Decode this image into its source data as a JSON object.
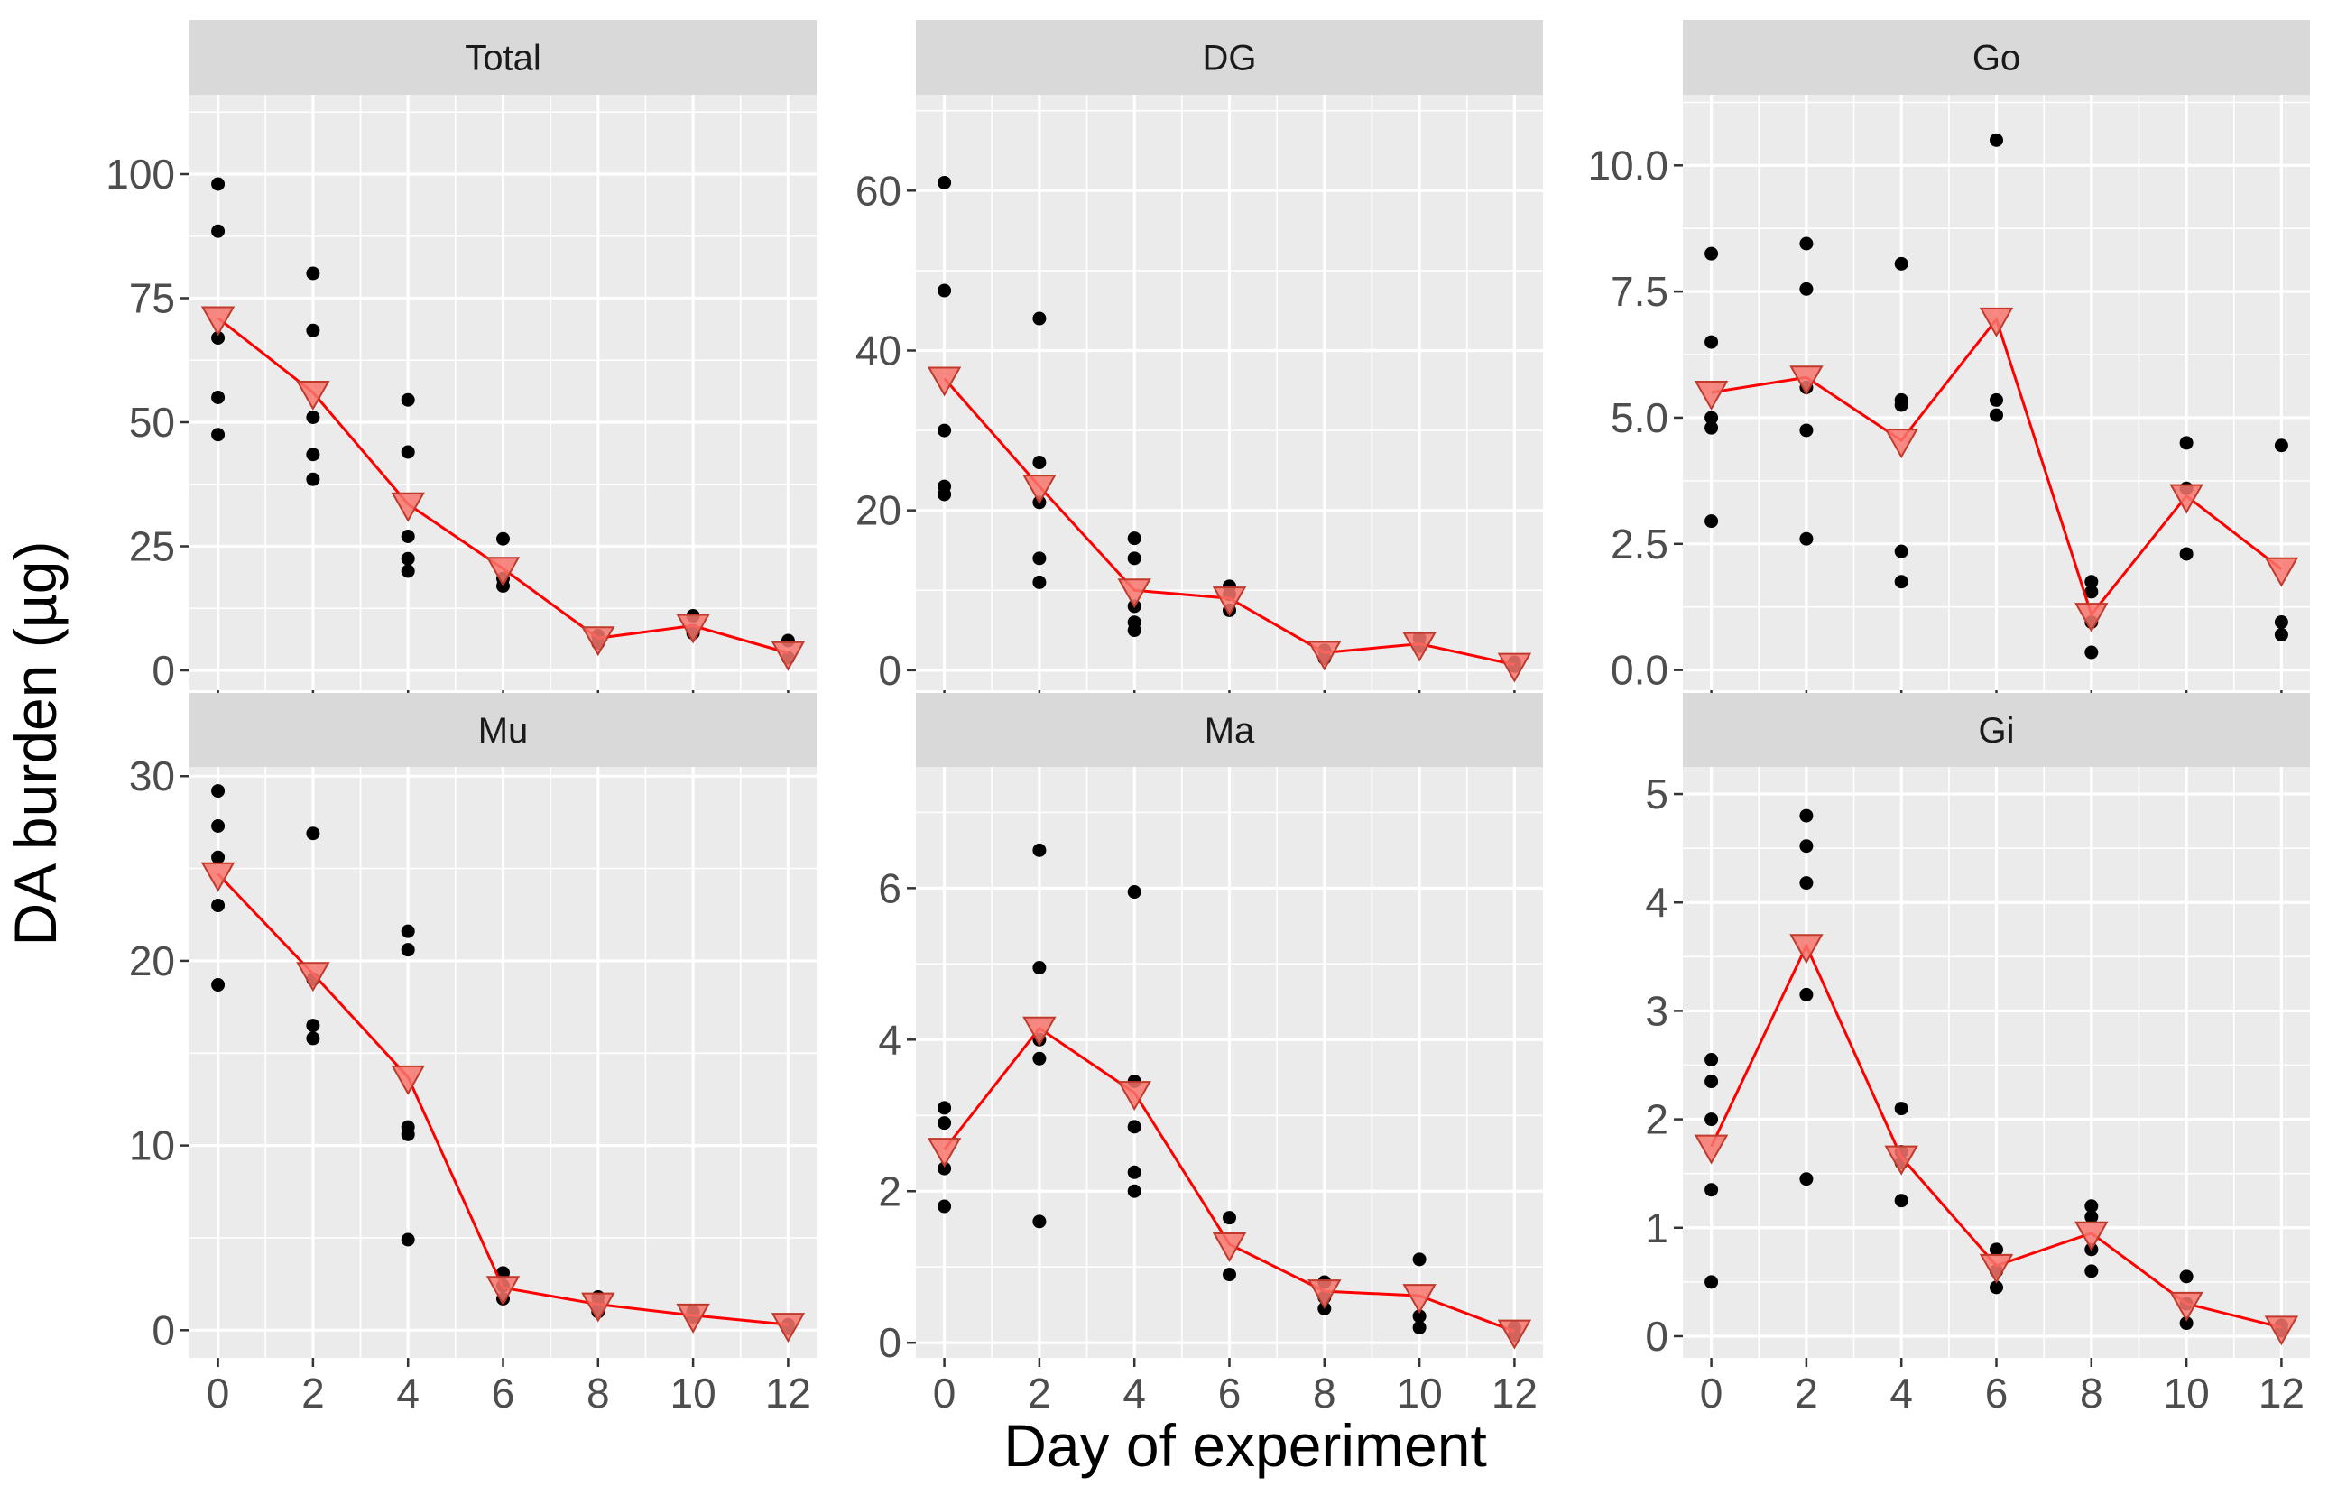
{
  "figure": {
    "xlabel": "Day of experiment",
    "ylabel": "DA burden (µg)",
    "colors": {
      "panel_bg": "#EBEBEB",
      "strip_bg": "#D9D9D9",
      "grid": "#FFFFFF",
      "points": "#000000",
      "mean_line": "#FF0000",
      "mean_marker": "#F8766D"
    }
  },
  "chart_data": [
    {
      "type": "scatter",
      "title": "Total",
      "xlim": [
        -0.6,
        12.6
      ],
      "ylim": [
        -4,
        116
      ],
      "xticks": [
        0,
        2,
        4,
        6,
        8,
        10,
        12
      ],
      "yticks": [
        0,
        25,
        50,
        75,
        100
      ],
      "ytick_labels": [
        "0",
        "25",
        "50",
        "75",
        "100"
      ],
      "points": [
        [
          0,
          98
        ],
        [
          0,
          88.5
        ],
        [
          0,
          67
        ],
        [
          0,
          55
        ],
        [
          0,
          47.5
        ],
        [
          2,
          80
        ],
        [
          2,
          68.5
        ],
        [
          2,
          51
        ],
        [
          2,
          43.5
        ],
        [
          2,
          38.5
        ],
        [
          4,
          54.5
        ],
        [
          4,
          44
        ],
        [
          4,
          27
        ],
        [
          4,
          22.5
        ],
        [
          4,
          20
        ],
        [
          6,
          26.5
        ],
        [
          6,
          18.5
        ],
        [
          6,
          17
        ],
        [
          8,
          7
        ],
        [
          8,
          5.5
        ],
        [
          10,
          11
        ],
        [
          10,
          8
        ],
        [
          10,
          7.5
        ],
        [
          12,
          6
        ],
        [
          12,
          2.5
        ]
      ],
      "mean": {
        "x": [
          0,
          2,
          4,
          6,
          8,
          10,
          12
        ],
        "y": [
          71,
          56,
          33.5,
          20.5,
          6.5,
          9,
          3.5
        ]
      }
    },
    {
      "type": "scatter",
      "title": "DG",
      "xlim": [
        -0.6,
        12.6
      ],
      "ylim": [
        -2.5,
        72
      ],
      "xticks": [
        0,
        2,
        4,
        6,
        8,
        10,
        12
      ],
      "yticks": [
        0,
        20,
        40,
        60
      ],
      "ytick_labels": [
        "0",
        "20",
        "40",
        "60"
      ],
      "points": [
        [
          0,
          61
        ],
        [
          0,
          47.5
        ],
        [
          0,
          30
        ],
        [
          0,
          23
        ],
        [
          0,
          22
        ],
        [
          2,
          44
        ],
        [
          2,
          26
        ],
        [
          2,
          21
        ],
        [
          2,
          14
        ],
        [
          2,
          11
        ],
        [
          4,
          16.5
        ],
        [
          4,
          14
        ],
        [
          4,
          8
        ],
        [
          4,
          6
        ],
        [
          4,
          5
        ],
        [
          6,
          10.5
        ],
        [
          6,
          9.5
        ],
        [
          6,
          7.5
        ],
        [
          8,
          2.5
        ],
        [
          8,
          1.5
        ],
        [
          10,
          4
        ],
        [
          10,
          3
        ],
        [
          12,
          1
        ],
        [
          12,
          0.5
        ]
      ],
      "mean": {
        "x": [
          0,
          2,
          4,
          6,
          8,
          10,
          12
        ],
        "y": [
          36.5,
          23,
          10,
          9,
          2.2,
          3.3,
          0.7
        ]
      }
    },
    {
      "type": "scatter",
      "title": "Go",
      "xlim": [
        -0.6,
        12.6
      ],
      "ylim": [
        -0.4,
        11.4
      ],
      "xticks": [
        0,
        2,
        4,
        6,
        8,
        10,
        12
      ],
      "yticks": [
        0,
        2.5,
        5,
        7.5,
        10
      ],
      "ytick_labels": [
        "0.0",
        "2.5",
        "5.0",
        "7.5",
        "10.0"
      ],
      "points": [
        [
          0,
          8.25
        ],
        [
          0,
          6.5
        ],
        [
          0,
          5
        ],
        [
          0,
          4.8
        ],
        [
          0,
          2.95
        ],
        [
          2,
          8.45
        ],
        [
          2,
          7.55
        ],
        [
          2,
          5.6
        ],
        [
          2,
          4.75
        ],
        [
          2,
          2.6
        ],
        [
          4,
          8.05
        ],
        [
          4,
          5.35
        ],
        [
          4,
          5.25
        ],
        [
          4,
          2.35
        ],
        [
          4,
          1.75
        ],
        [
          6,
          10.5
        ],
        [
          6,
          5.35
        ],
        [
          6,
          5.05
        ],
        [
          8,
          1.75
        ],
        [
          8,
          1.55
        ],
        [
          8,
          0.95
        ],
        [
          8,
          0.35
        ],
        [
          10,
          4.5
        ],
        [
          10,
          3.6
        ],
        [
          10,
          2.3
        ],
        [
          12,
          4.45
        ],
        [
          12,
          0.95
        ],
        [
          12,
          0.7
        ]
      ],
      "mean": {
        "x": [
          0,
          2,
          4,
          6,
          8,
          10,
          12
        ],
        "y": [
          5.5,
          5.8,
          4.55,
          6.95,
          1.1,
          3.45,
          2
        ]
      }
    },
    {
      "type": "scatter",
      "title": "Mu",
      "xlim": [
        -0.6,
        12.6
      ],
      "ylim": [
        -1.5,
        30.5
      ],
      "xticks": [
        0,
        2,
        4,
        6,
        8,
        10,
        12
      ],
      "yticks": [
        0,
        10,
        20,
        30
      ],
      "ytick_labels": [
        "0",
        "10",
        "20",
        "30"
      ],
      "points": [
        [
          0,
          29.2
        ],
        [
          0,
          27.3
        ],
        [
          0,
          25.6
        ],
        [
          0,
          23
        ],
        [
          0,
          18.7
        ],
        [
          2,
          26.9
        ],
        [
          2,
          19
        ],
        [
          2,
          16.5
        ],
        [
          2,
          15.8
        ],
        [
          4,
          21.6
        ],
        [
          4,
          20.6
        ],
        [
          4,
          11
        ],
        [
          4,
          10.6
        ],
        [
          4,
          4.9
        ],
        [
          6,
          3.1
        ],
        [
          6,
          2.4
        ],
        [
          6,
          1.7
        ],
        [
          8,
          1.8
        ],
        [
          8,
          1.4
        ],
        [
          8,
          1
        ],
        [
          10,
          1
        ],
        [
          10,
          0.7
        ],
        [
          12,
          0.3
        ],
        [
          12,
          0.1
        ]
      ],
      "mean": {
        "x": [
          0,
          2,
          4,
          6,
          8,
          10,
          12
        ],
        "y": [
          24.7,
          19.3,
          13.7,
          2.3,
          1.4,
          0.8,
          0.3
        ]
      }
    },
    {
      "type": "scatter",
      "title": "Ma",
      "xlim": [
        -0.6,
        12.6
      ],
      "ylim": [
        -0.2,
        7.6
      ],
      "xticks": [
        0,
        2,
        4,
        6,
        8,
        10,
        12
      ],
      "yticks": [
        0,
        2,
        4,
        6
      ],
      "ytick_labels": [
        "0",
        "2",
        "4",
        "6"
      ],
      "points": [
        [
          0,
          3.1
        ],
        [
          0,
          2.9
        ],
        [
          0,
          2.3
        ],
        [
          0,
          1.8
        ],
        [
          2,
          6.5
        ],
        [
          2,
          4.95
        ],
        [
          2,
          4
        ],
        [
          2,
          3.75
        ],
        [
          2,
          1.6
        ],
        [
          4,
          5.95
        ],
        [
          4,
          3.45
        ],
        [
          4,
          2.85
        ],
        [
          4,
          2.25
        ],
        [
          4,
          2
        ],
        [
          6,
          1.65
        ],
        [
          6,
          0.9
        ],
        [
          8,
          0.8
        ],
        [
          8,
          0.6
        ],
        [
          8,
          0.45
        ],
        [
          10,
          1.1
        ],
        [
          10,
          0.35
        ],
        [
          10,
          0.2
        ],
        [
          12,
          0.2
        ],
        [
          12,
          0.1
        ]
      ],
      "mean": {
        "x": [
          0,
          2,
          4,
          6,
          8,
          10,
          12
        ],
        "y": [
          2.55,
          4.15,
          3.3,
          1.3,
          0.68,
          0.62,
          0.15
        ]
      }
    },
    {
      "type": "scatter",
      "title": "Gi",
      "xlim": [
        -0.6,
        12.6
      ],
      "ylim": [
        -0.2,
        5.25
      ],
      "xticks": [
        0,
        2,
        4,
        6,
        8,
        10,
        12
      ],
      "yticks": [
        0,
        1,
        2,
        3,
        4,
        5
      ],
      "ytick_labels": [
        "0",
        "1",
        "2",
        "3",
        "4",
        "5"
      ],
      "points": [
        [
          0,
          2.55
        ],
        [
          0,
          2.35
        ],
        [
          0,
          2
        ],
        [
          0,
          1.35
        ],
        [
          0,
          0.5
        ],
        [
          2,
          4.8
        ],
        [
          2,
          4.52
        ],
        [
          2,
          4.18
        ],
        [
          2,
          3.15
        ],
        [
          2,
          1.45
        ],
        [
          4,
          2.1
        ],
        [
          4,
          1.7
        ],
        [
          4,
          1.6
        ],
        [
          4,
          1.25
        ],
        [
          6,
          0.8
        ],
        [
          6,
          0.6
        ],
        [
          6,
          0.45
        ],
        [
          8,
          1.2
        ],
        [
          8,
          1.1
        ],
        [
          8,
          0.8
        ],
        [
          8,
          0.6
        ],
        [
          10,
          0.55
        ],
        [
          10,
          0.3
        ],
        [
          10,
          0.12
        ],
        [
          12,
          0.1
        ],
        [
          12,
          0.05
        ]
      ],
      "mean": {
        "x": [
          0,
          2,
          4,
          6,
          8,
          10,
          12
        ],
        "y": [
          1.75,
          3.6,
          1.65,
          0.65,
          0.95,
          0.3,
          0.08
        ]
      }
    }
  ]
}
